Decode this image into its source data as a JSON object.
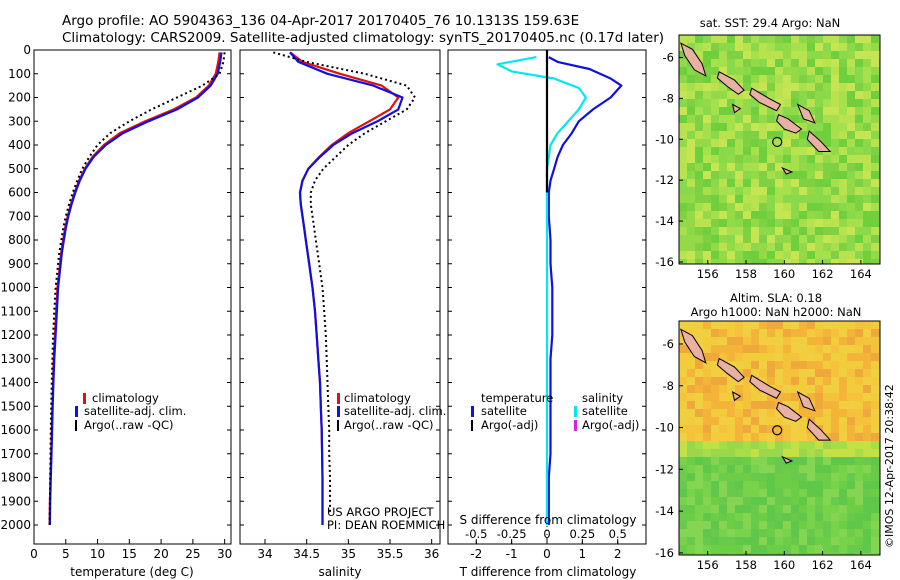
{
  "header": {
    "line1": "Argo profile: AO 5904363_136 04-Apr-2017 20170405_76 10.1313S 159.63E",
    "line2": "Climatology: CARS2009. Satellite-adjusted climatology: synTS_20170405.nc (0.17d later)"
  },
  "colors": {
    "climatology": "#e01010",
    "satellite_adj": "#1010e0",
    "argo": "#000000",
    "cyan": "#00e8f0",
    "magenta": "#e020e0",
    "land": "#e9b0a4"
  },
  "chart_data": [
    {
      "type": "line",
      "panel": "temperature",
      "xlabel": "temperature (deg C)",
      "ylabel": "",
      "xlim": [
        0,
        31
      ],
      "ylim": [
        2080,
        0
      ],
      "xticks": [
        "0",
        "5",
        "10",
        "15",
        "20",
        "25",
        "30"
      ],
      "yticks": [
        "0",
        "100",
        "200",
        "300",
        "400",
        "500",
        "600",
        "700",
        "800",
        "900",
        "1000",
        "1100",
        "1200",
        "1300",
        "1400",
        "1500",
        "1600",
        "1700",
        "1800",
        "1900",
        "2000"
      ],
      "legend": [
        "climatology",
        "satellite-adj. clim.",
        "Argo(..raw -QC)"
      ],
      "legend_position": "lower-center",
      "series": [
        {
          "name": "climatology",
          "color": "#e01010",
          "x": [
            29.2,
            29.0,
            28.6,
            27.5,
            25.5,
            22.0,
            17.5,
            13.5,
            11.0,
            9.2,
            8.0,
            7.1,
            6.4,
            5.8,
            5.3,
            4.9,
            4.6,
            4.3,
            4.1,
            3.9,
            3.7,
            3.5,
            3.3,
            3.1,
            3.0,
            2.9,
            2.8,
            2.7,
            2.6,
            2.5,
            2.45
          ],
          "y": [
            10,
            50,
            100,
            150,
            200,
            250,
            300,
            350,
            400,
            450,
            500,
            550,
            600,
            650,
            700,
            750,
            800,
            850,
            900,
            950,
            1000,
            1100,
            1200,
            1300,
            1400,
            1500,
            1600,
            1700,
            1800,
            1900,
            2000
          ]
        },
        {
          "name": "satellite-adj. clim.",
          "color": "#1010e0",
          "x": [
            29.5,
            29.3,
            28.9,
            27.8,
            25.8,
            22.5,
            18.0,
            14.0,
            11.3,
            9.4,
            8.1,
            7.2,
            6.5,
            5.9,
            5.4,
            5.0,
            4.7,
            4.4,
            4.2,
            4.0,
            3.8,
            3.6,
            3.4,
            3.2,
            3.05,
            2.95,
            2.85,
            2.75,
            2.65,
            2.55,
            2.5
          ],
          "y": [
            10,
            50,
            100,
            150,
            200,
            250,
            300,
            350,
            400,
            450,
            500,
            550,
            600,
            650,
            700,
            750,
            800,
            850,
            900,
            950,
            1000,
            1100,
            1200,
            1300,
            1400,
            1500,
            1600,
            1700,
            1800,
            1900,
            2000
          ]
        },
        {
          "name": "Argo(..raw -QC)",
          "color": "#000000",
          "x": [
            30.0,
            29.8,
            29.2,
            26.5,
            22.5,
            18.5,
            15.0,
            12.0,
            10.0,
            8.7,
            7.6,
            6.8,
            6.1,
            5.5,
            5.0,
            4.6,
            4.3,
            4.0,
            3.8,
            3.6,
            3.4,
            3.2,
            3.0,
            2.9,
            2.8,
            2.7,
            2.65,
            2.6,
            2.55,
            2.5,
            2.45
          ],
          "y": [
            10,
            50,
            100,
            150,
            200,
            250,
            300,
            350,
            400,
            450,
            500,
            550,
            600,
            650,
            700,
            750,
            800,
            850,
            900,
            950,
            1000,
            1100,
            1200,
            1300,
            1400,
            1500,
            1600,
            1700,
            1800,
            1900,
            2000
          ]
        }
      ]
    },
    {
      "type": "line",
      "panel": "salinity",
      "xlabel": "salinity",
      "xlim": [
        33.7,
        36.1
      ],
      "ylim": [
        2080,
        0
      ],
      "xticks": [
        "34",
        "34.5",
        "35",
        "35.5",
        "36"
      ],
      "legend": [
        "climatology",
        "satellite-adj. clim.",
        "Argo(..raw -QC)"
      ],
      "legend_position": "lower-right",
      "annotations": [
        "US ARGO PROJECT",
        "PI: DEAN ROEMMICH"
      ],
      "series": [
        {
          "name": "climatology",
          "color": "#e01010",
          "x": [
            34.3,
            34.45,
            34.9,
            35.4,
            35.6,
            35.5,
            35.25,
            35.0,
            34.8,
            34.65,
            34.52,
            34.45,
            34.42,
            34.43,
            34.45,
            34.47,
            34.49,
            34.51,
            34.53,
            34.55,
            34.57,
            34.6,
            34.62,
            34.64,
            34.66,
            34.67,
            34.68,
            34.685,
            34.69,
            34.69
          ],
          "y": [
            10,
            50,
            100,
            150,
            200,
            250,
            300,
            350,
            400,
            450,
            500,
            550,
            600,
            650,
            700,
            750,
            800,
            850,
            900,
            950,
            1000,
            1100,
            1200,
            1300,
            1400,
            1500,
            1600,
            1700,
            1800,
            2000
          ]
        },
        {
          "name": "satellite-adj. clim.",
          "color": "#1010e0",
          "x": [
            34.3,
            34.4,
            34.75,
            35.3,
            35.65,
            35.6,
            35.35,
            35.05,
            34.82,
            34.66,
            34.52,
            34.45,
            34.42,
            34.43,
            34.45,
            34.47,
            34.49,
            34.51,
            34.53,
            34.55,
            34.57,
            34.6,
            34.62,
            34.64,
            34.66,
            34.67,
            34.68,
            34.685,
            34.69,
            34.69
          ],
          "y": [
            10,
            50,
            100,
            150,
            200,
            250,
            300,
            350,
            400,
            450,
            500,
            550,
            600,
            650,
            700,
            750,
            800,
            850,
            900,
            950,
            1000,
            1100,
            1200,
            1300,
            1400,
            1500,
            1600,
            1700,
            1800,
            2000
          ]
        },
        {
          "name": "Argo(..raw -QC)",
          "color": "#000000",
          "x": [
            34.1,
            34.5,
            35.2,
            35.7,
            35.8,
            35.7,
            35.45,
            35.2,
            35.0,
            34.85,
            34.7,
            34.6,
            34.55,
            34.55,
            34.57,
            34.59,
            34.61,
            34.63,
            34.65,
            34.67,
            34.69,
            34.71,
            34.73,
            34.74,
            34.75,
            34.76,
            34.77,
            34.77,
            34.78,
            34.78
          ],
          "y": [
            10,
            50,
            100,
            150,
            200,
            250,
            300,
            350,
            400,
            450,
            500,
            550,
            600,
            650,
            700,
            750,
            800,
            850,
            900,
            950,
            1000,
            1100,
            1200,
            1300,
            1400,
            1500,
            1600,
            1700,
            1800,
            1950
          ]
        }
      ]
    },
    {
      "type": "line",
      "panel": "difference",
      "xlabel": "T difference from climatology",
      "xlabel_top": "S difference from climatology",
      "xlim": [
        -2.8,
        2.8
      ],
      "ylim": [
        2080,
        0
      ],
      "xticks": [
        "-2",
        "-1",
        "0",
        "1",
        "2"
      ],
      "xticks_s": [
        "-0.5",
        "-0.25",
        "0",
        "0.25",
        "0.5"
      ],
      "legend": [
        "temperature",
        "salinity",
        "satellite",
        "Argo(-adj)",
        "satellite",
        "Argo(-adj)"
      ],
      "legend_position": "lower-center",
      "series": [
        {
          "name": "T satellite",
          "color": "#1010e0",
          "x": [
            0.05,
            0.3,
            1.2,
            1.8,
            2.1,
            1.8,
            1.3,
            0.9,
            0.7,
            0.45,
            0.3,
            0.2,
            0.1,
            0.05,
            0.05,
            0.1,
            0.1,
            0.15,
            0.15,
            0.15,
            0.1,
            0.1,
            0.1,
            0.1,
            0.1,
            0.05,
            0.05,
            0.05
          ],
          "y": [
            30,
            50,
            80,
            120,
            150,
            200,
            250,
            300,
            350,
            400,
            450,
            500,
            550,
            600,
            700,
            800,
            900,
            1000,
            1100,
            1200,
            1300,
            1400,
            1500,
            1600,
            1700,
            1800,
            1900,
            2000
          ]
        },
        {
          "name": "S satellite",
          "color": "#00e8f0",
          "x": [
            -0.3,
            -1.4,
            -1.0,
            0.2,
            0.9,
            1.1,
            0.9,
            0.6,
            0.3,
            0.1,
            0.05,
            0.0,
            0.0,
            0.0,
            0.0,
            0.0,
            0.0,
            0.0,
            0.0,
            0.0,
            0.0,
            0.0,
            0.0,
            0.0
          ],
          "y": [
            30,
            60,
            90,
            120,
            160,
            200,
            250,
            300,
            350,
            400,
            450,
            500,
            550,
            600,
            700,
            800,
            900,
            1000,
            1200,
            1400,
            1600,
            1800,
            1900,
            2000
          ]
        },
        {
          "name": "Argo(-adj)",
          "color": "#000000",
          "x": [
            0,
            0,
            0,
            0,
            0,
            0,
            0
          ],
          "y": [
            0,
            100,
            200,
            300,
            400,
            500,
            600
          ]
        }
      ]
    }
  ],
  "maps": {
    "sst": {
      "title": "sat. SST: 29.4  Argo: NaN",
      "yticks": [
        "-6",
        "-8",
        "-10",
        "-12",
        "-14",
        "-16"
      ],
      "xticks": [
        "156",
        "158",
        "160",
        "162",
        "164"
      ]
    },
    "sla": {
      "title1": "Altim. SLA: 0.18",
      "title2": "Argo h1000: NaN h2000: NaN",
      "yticks": [
        "-6",
        "-8",
        "-10",
        "-12",
        "-14",
        "-16"
      ],
      "xticks": [
        "156",
        "158",
        "160",
        "162",
        "164"
      ]
    }
  },
  "footer": {
    "credit": "©IMOS 12-Apr-2017 20:38:42"
  }
}
